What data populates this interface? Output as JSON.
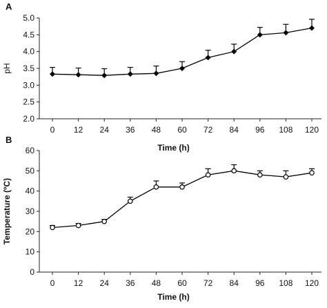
{
  "figure": {
    "panels": [
      "A",
      "B"
    ]
  },
  "chart_data": [
    {
      "type": "line",
      "panel_label": "A",
      "xlabel": "Time (h)",
      "ylabel": "pH",
      "x": [
        0,
        12,
        24,
        36,
        48,
        60,
        72,
        84,
        96,
        108,
        120
      ],
      "x_tick_labels": [
        "0",
        "12",
        "24",
        "36",
        "48",
        "60",
        "72",
        "84",
        "96",
        "108",
        "120"
      ],
      "ylim": [
        2.0,
        5.0
      ],
      "y_ticks": [
        "2.0",
        "2.5",
        "3.0",
        "3.5",
        "4.0",
        "4.5",
        "5.0"
      ],
      "grid": false,
      "series": [
        {
          "marker": "filled-diamond",
          "color": "#000000",
          "values": [
            3.33,
            3.31,
            3.29,
            3.33,
            3.35,
            3.5,
            3.82,
            4.0,
            4.5,
            4.56,
            4.7
          ],
          "errors": [
            0.2,
            0.2,
            0.2,
            0.2,
            0.22,
            0.2,
            0.22,
            0.22,
            0.22,
            0.25,
            0.26
          ]
        }
      ]
    },
    {
      "type": "line",
      "panel_label": "B",
      "xlabel": "Time (h)",
      "ylabel": "Temperature (ºC)",
      "x": [
        0,
        12,
        24,
        36,
        48,
        60,
        72,
        84,
        96,
        108,
        120
      ],
      "x_tick_labels": [
        "0",
        "12",
        "24",
        "36",
        "48",
        "60",
        "72",
        "84",
        "96",
        "108",
        "120"
      ],
      "ylim": [
        0,
        60
      ],
      "y_ticks": [
        "0",
        "10",
        "20",
        "30",
        "40",
        "50",
        "60"
      ],
      "grid": false,
      "series": [
        {
          "marker": "open-circle",
          "color": "#000000",
          "values": [
            22,
            23,
            25,
            35,
            42,
            42,
            48,
            50,
            48,
            47,
            49
          ],
          "errors": [
            1,
            1,
            1,
            2,
            3,
            2,
            3,
            3,
            2,
            3,
            2
          ]
        }
      ]
    }
  ]
}
